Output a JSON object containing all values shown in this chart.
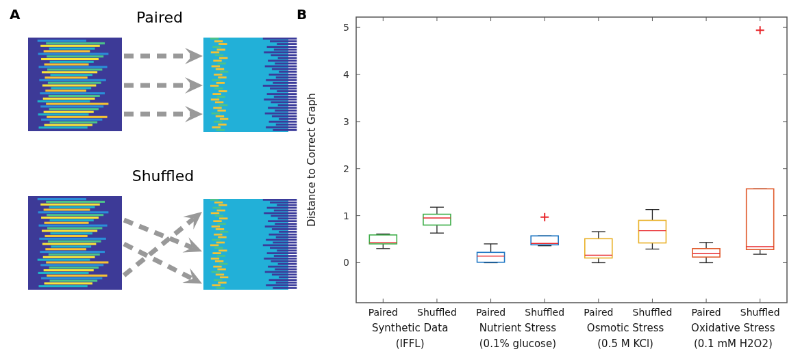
{
  "chart_data": {
    "type": "box",
    "title": "B",
    "ylabel": "Distance to Correct Graph",
    "categories": [
      "Paired",
      "Shuffled",
      "Paired",
      "Shuffled",
      "Paired",
      "Shuffled",
      "Paired",
      "Shuffled"
    ],
    "boxes": [
      {
        "low": 0.3,
        "q1": 0.4,
        "median": 0.43,
        "q3": 0.59,
        "high": 0.61
      },
      {
        "low": 0.63,
        "q1": 0.8,
        "median": 0.95,
        "q3": 1.03,
        "high": 1.18
      },
      {
        "low": 0.0,
        "q1": 0.01,
        "median": 0.14,
        "q3": 0.22,
        "high": 0.4
      },
      {
        "low": 0.36,
        "q1": 0.38,
        "median": 0.41,
        "q3": 0.57,
        "high": 0.57,
        "outliers": [
          0.97
        ]
      },
      {
        "low": 0.0,
        "q1": 0.1,
        "median": 0.16,
        "q3": 0.51,
        "high": 0.66
      },
      {
        "low": 0.29,
        "q1": 0.42,
        "median": 0.68,
        "q3": 0.9,
        "high": 1.13
      },
      {
        "low": 0.0,
        "q1": 0.12,
        "median": 0.2,
        "q3": 0.3,
        "high": 0.43
      },
      {
        "low": 0.18,
        "q1": 0.28,
        "median": 0.34,
        "q3": 1.57,
        "high": 1.57,
        "outliers": [
          4.94
        ]
      }
    ],
    "colors": [
      "#3fae4a",
      "#3fae4a",
      "#1f77c4",
      "#1f77c4",
      "#e9b128",
      "#e9b128",
      "#e05a2b",
      "#e05a2b"
    ],
    "ylim": [
      -0.85,
      5.22
    ],
    "yticks": [
      0,
      1,
      2,
      3,
      4,
      5
    ],
    "grid": false,
    "annotations": [
      "Synthetic Data (IFFL)",
      "Nutrient Stress (0.1% glucose)",
      "Osmotic Stress (0.5 M KCl)",
      "Oxidative Stress (0.1 mM H2O2)",
      "A",
      "Paired",
      "Shuffled"
    ]
  }
}
